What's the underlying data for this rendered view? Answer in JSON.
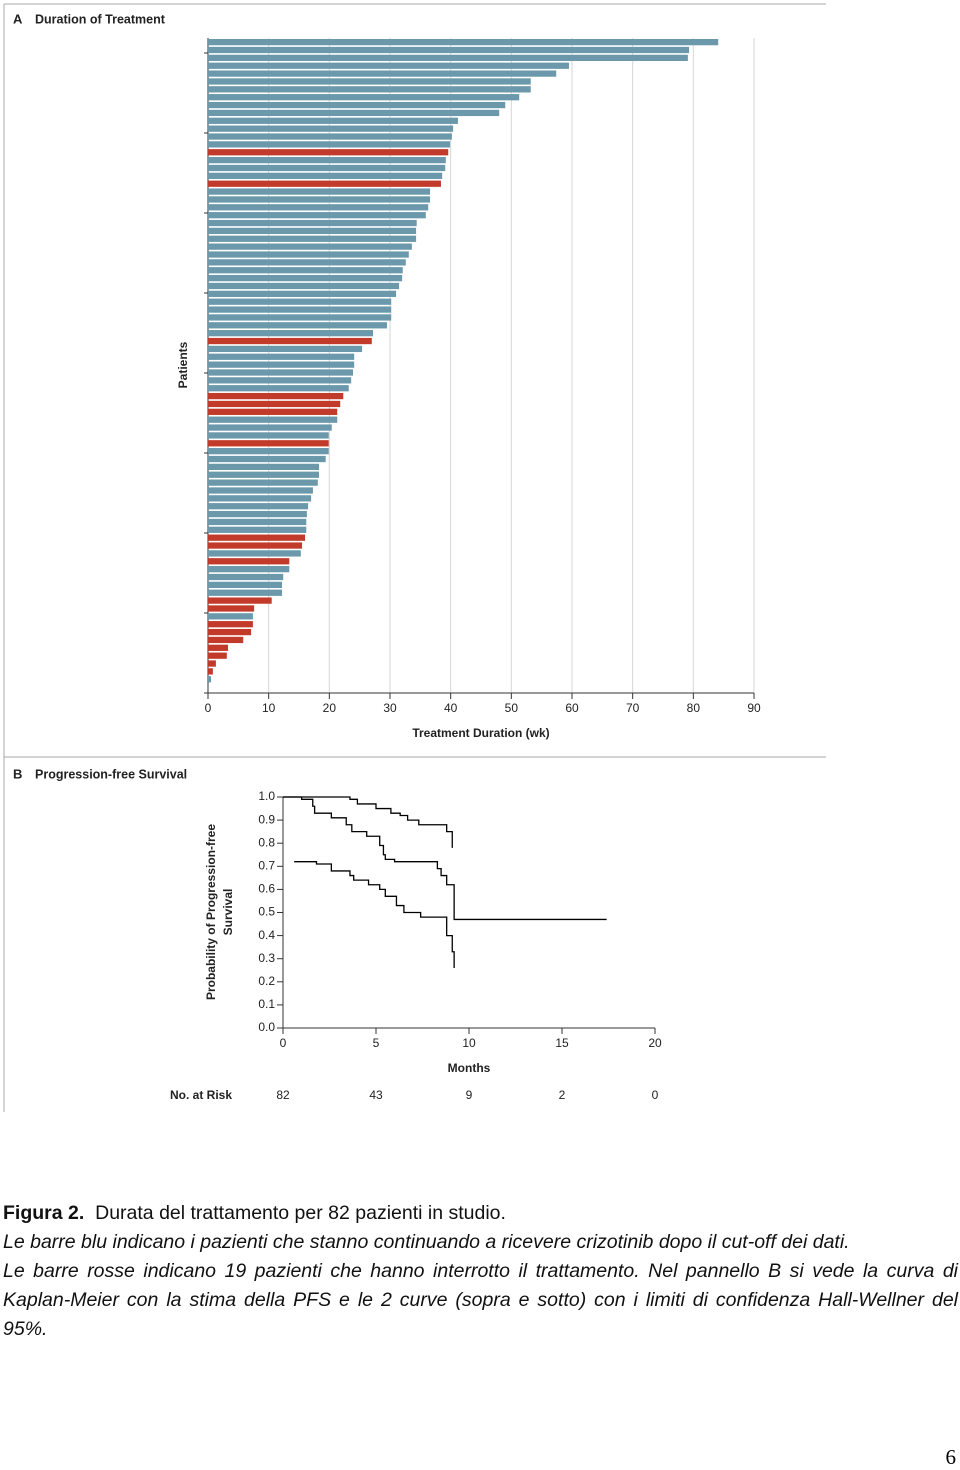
{
  "chart_data": [
    {
      "type": "bar",
      "orientation": "horizontal",
      "panel": "A",
      "title": "Duration of Treatment",
      "ylabel": "Patients",
      "xlabel": "Treatment Duration (wk)",
      "values": [
        84.1,
        79.3,
        79.1,
        59.5,
        57.4,
        53.2,
        53.2,
        51.3,
        49,
        48,
        41.2,
        40.4,
        40.2,
        39.9,
        39.6,
        39.2,
        39.1,
        38.6,
        38.4,
        36.6,
        36.6,
        36.3,
        35.9,
        34.4,
        34.3,
        34.3,
        33.6,
        33.1,
        32.6,
        32.1,
        32,
        31.5,
        31,
        30.2,
        30.2,
        30.2,
        29.5,
        27.2,
        27,
        25.4,
        24.1,
        24.1,
        23.9,
        23.6,
        23.2,
        22.3,
        21.8,
        21.3,
        21.3,
        20.4,
        19.9,
        19.9,
        19.9,
        19.4,
        18.3,
        18.3,
        18.1,
        17.3,
        17,
        16.5,
        16.3,
        16.2,
        16.2,
        16,
        15.5,
        15.3,
        13.4,
        13.4,
        12.4,
        12.2,
        12.2,
        10.5,
        7.6,
        7.4,
        7.4,
        7.1,
        5.8,
        3.3,
        3.1,
        1.3,
        0.8,
        0.5
      ],
      "colors": [
        "#6b99ab",
        "#6b99ab",
        "#6b99ab",
        "#6b99ab",
        "#6b99ab",
        "#6b99ab",
        "#6b99ab",
        "#6b99ab",
        "#6b99ab",
        "#6b99ab",
        "#6b99ab",
        "#6b99ab",
        "#6b99ab",
        "#6b99ab",
        "#c23b2a",
        "#6b99ab",
        "#6b99ab",
        "#6b99ab",
        "#c23b2a",
        "#6b99ab",
        "#6b99ab",
        "#6b99ab",
        "#6b99ab",
        "#6b99ab",
        "#6b99ab",
        "#6b99ab",
        "#6b99ab",
        "#6b99ab",
        "#6b99ab",
        "#6b99ab",
        "#6b99ab",
        "#6b99ab",
        "#6b99ab",
        "#6b99ab",
        "#6b99ab",
        "#6b99ab",
        "#6b99ab",
        "#6b99ab",
        "#c23b2a",
        "#6b99ab",
        "#6b99ab",
        "#6b99ab",
        "#6b99ab",
        "#6b99ab",
        "#6b99ab",
        "#c23b2a",
        "#c23b2a",
        "#c23b2a",
        "#6b99ab",
        "#6b99ab",
        "#6b99ab",
        "#c23b2a",
        "#6b99ab",
        "#6b99ab",
        "#6b99ab",
        "#6b99ab",
        "#6b99ab",
        "#6b99ab",
        "#6b99ab",
        "#6b99ab",
        "#6b99ab",
        "#6b99ab",
        "#6b99ab",
        "#c23b2a",
        "#c23b2a",
        "#6b99ab",
        "#c23b2a",
        "#6b99ab",
        "#6b99ab",
        "#6b99ab",
        "#6b99ab",
        "#c23b2a",
        "#c23b2a",
        "#6b99ab",
        "#c23b2a",
        "#c23b2a",
        "#c23b2a",
        "#c23b2a",
        "#c23b2a",
        "#c23b2a",
        "#c23b2a",
        "#6b99ab"
      ],
      "xlim": [
        0,
        90
      ],
      "xticks": [
        0,
        10,
        20,
        30,
        40,
        50,
        60,
        70,
        80,
        90
      ],
      "grid": true
    },
    {
      "type": "step",
      "panel": "B",
      "title": "Progression-free Survival",
      "ylabel": [
        "Probability of Progression-free",
        "Survival"
      ],
      "xlabel": "Months",
      "series": [
        {
          "color": "#000000",
          "x": [
            0,
            1.0,
            1.6,
            1.7,
            2.6,
            3.4,
            3.7,
            4.5,
            5.2,
            5.4,
            5.5,
            6.0,
            8.3,
            8.5,
            8.8,
            9.2,
            17.4
          ],
          "values": [
            1.0,
            0.99,
            0.96,
            0.93,
            0.91,
            0.88,
            0.85,
            0.83,
            0.79,
            0.75,
            0.73,
            0.72,
            0.69,
            0.66,
            0.62,
            0.47,
            0.47
          ]
        },
        {
          "color": "#000000",
          "x": [
            0,
            3.6,
            4.0,
            5.0,
            5.8,
            6.3,
            6.7,
            7.3,
            8.8,
            9.1
          ],
          "values": [
            1.0,
            0.99,
            0.97,
            0.95,
            0.93,
            0.92,
            0.9,
            0.88,
            0.85,
            0.78
          ]
        },
        {
          "color": "#000000",
          "x": [
            0.6,
            1.8,
            2.6,
            3.6,
            3.8,
            4.6,
            5.2,
            5.5,
            6.1,
            6.5,
            7.4,
            8.8,
            9.1,
            9.2
          ],
          "values": [
            0.72,
            0.71,
            0.68,
            0.66,
            0.64,
            0.62,
            0.6,
            0.57,
            0.53,
            0.5,
            0.48,
            0.4,
            0.33,
            0.26
          ]
        }
      ],
      "xlim": [
        0,
        20
      ],
      "xticks": [
        0,
        5,
        10,
        15,
        20
      ],
      "ylim": [
        0,
        1
      ],
      "yticks": [
        {
          "value": 0,
          "label": "0.0"
        },
        {
          "value": 0.1,
          "label": "0.1"
        },
        {
          "value": 0.2,
          "label": "0.2"
        },
        {
          "value": 0.3,
          "label": "0.3"
        },
        {
          "value": 0.4,
          "label": "0.4"
        },
        {
          "value": 0.5,
          "label": "0.5"
        },
        {
          "value": 0.6,
          "label": "0.6"
        },
        {
          "value": 0.7,
          "label": "0.7"
        },
        {
          "value": 0.8,
          "label": "0.8"
        },
        {
          "value": 0.9,
          "label": "0.9"
        },
        {
          "value": 1,
          "label": "1.0"
        }
      ],
      "risk_label": "No. at Risk",
      "at_risk": [
        82,
        43,
        9,
        2,
        0
      ]
    }
  ],
  "caption": {
    "label": "Figura 2.",
    "title": "Durata del trattamento per 82 pazienti in studio.",
    "body": [
      "Le barre blu indicano i pazienti che stanno continuando a  ricevere crizotinib dopo il cut-off dei dati.",
      "Le barre rosse indicano 19 pazienti che hanno interrotto il trattamento. Nel pannello B si vede la curva di Kaplan-Meier con la stima della PFS e le 2 curve (sopra e sotto) con i limiti di confidenza Hall-Wellner del 95%."
    ]
  },
  "page_number": "6"
}
